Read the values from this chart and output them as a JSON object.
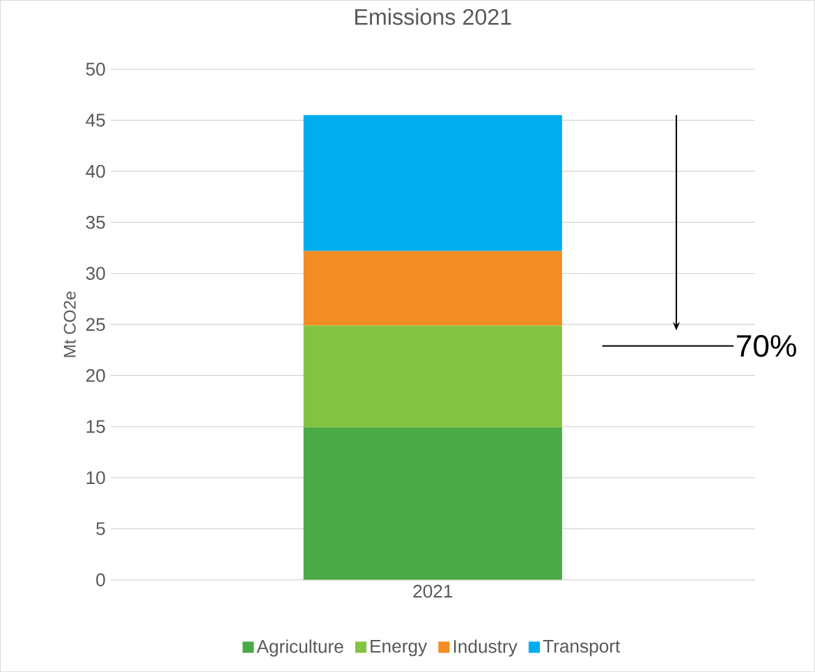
{
  "chart_data": {
    "type": "bar",
    "title": "Emissions 2021",
    "ylabel": "Mt CO2e",
    "categories": [
      "2021"
    ],
    "stacked": true,
    "series": [
      {
        "name": "Agriculture",
        "color": "#4aaa48",
        "values": [
          14.9
        ]
      },
      {
        "name": "Energy",
        "color": "#84c342",
        "values": [
          10.0
        ]
      },
      {
        "name": "Industry",
        "color": "#f38c22",
        "values": [
          7.3
        ]
      },
      {
        "name": "Transport",
        "color": "#00aeef",
        "values": [
          13.3
        ]
      }
    ],
    "ylim": [
      0,
      50
    ],
    "yticks": [
      0,
      5,
      10,
      15,
      20,
      25,
      30,
      35,
      40,
      45,
      50
    ],
    "grid": "y",
    "legend": "bottom",
    "ref_lines": [
      {
        "axis": "y",
        "value": 22.9
      }
    ],
    "annotations": [
      "70%"
    ]
  }
}
